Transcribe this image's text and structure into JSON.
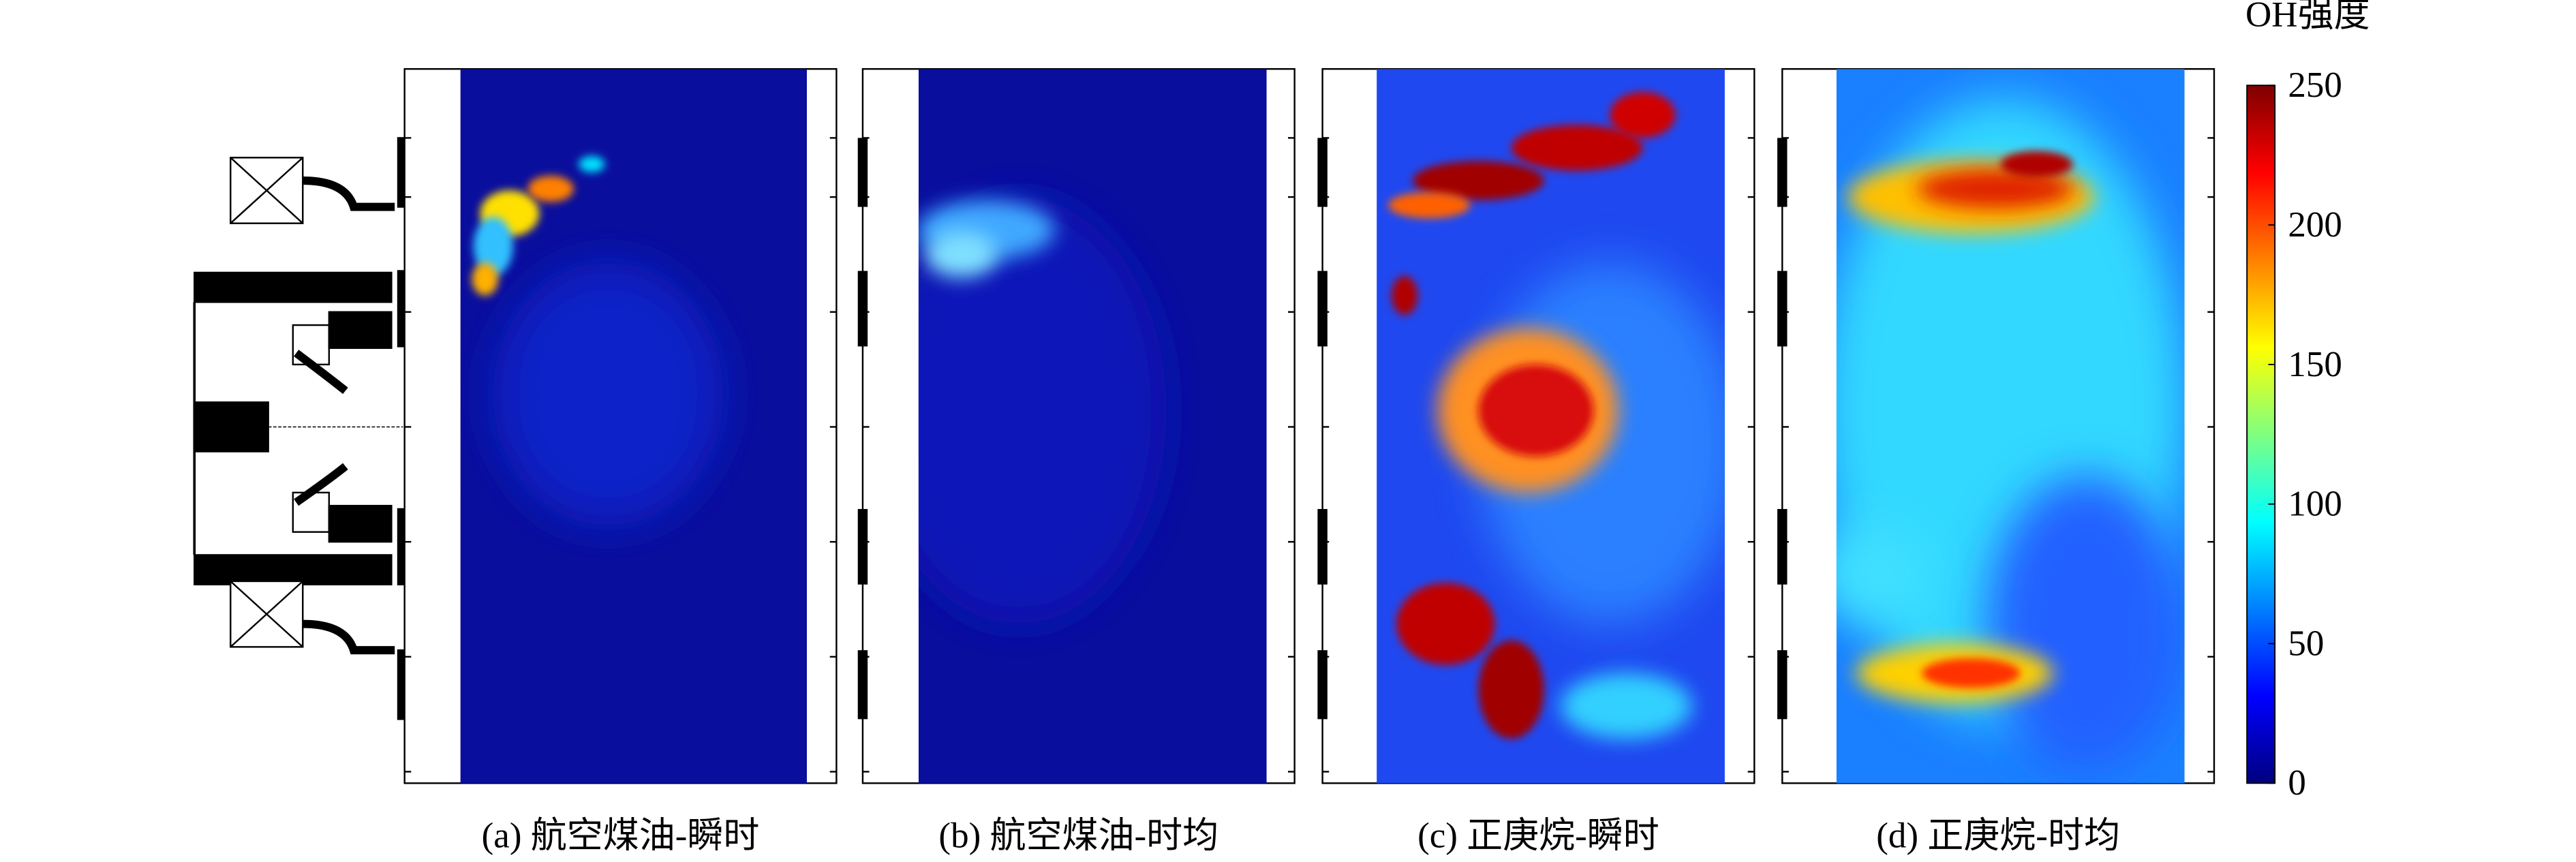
{
  "chart_data": {
    "type": "heatmap",
    "panels": [
      {
        "caption": "(a) 航空煤油-瞬时"
      },
      {
        "caption": "(b) 航空煤油-时均"
      },
      {
        "caption": "(c) 正庚烷-瞬时"
      },
      {
        "caption": "(d) 正庚烷-时均"
      }
    ],
    "colorbar": {
      "title": "OH强度",
      "lim": [
        0,
        250
      ],
      "ticks": [
        0,
        50,
        100,
        150,
        200,
        250
      ],
      "colormap": "jet"
    }
  }
}
